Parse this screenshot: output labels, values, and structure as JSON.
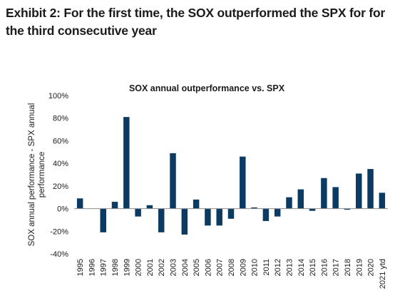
{
  "exhibit": {
    "title_line1": "Exhibit 2: For the first time, the SOX outperformed the SPX for for",
    "title_line2": "the third consecutive year"
  },
  "colors": {
    "bar": "#0b3a63",
    "axis": "#8c8c8c",
    "text": "#1b1b1b"
  },
  "chart_data": {
    "type": "bar",
    "title": "SOX annual outperformance vs. SPX",
    "xlabel": "",
    "ylabel_line1": "SOX annual performance - SPX annual",
    "ylabel_line2": "performance",
    "ylim": [
      -40,
      100
    ],
    "yticks": [
      100,
      80,
      60,
      40,
      20,
      0,
      -20,
      -40
    ],
    "ytick_labels": [
      "100%",
      "80%",
      "60%",
      "40%",
      "20%",
      "0%",
      "-20%",
      "-40%"
    ],
    "grid": false,
    "legend": "none",
    "categories": [
      "1995",
      "1996",
      "1997",
      "1998",
      "1999",
      "2000",
      "2001",
      "2002",
      "2003",
      "2004",
      "2005",
      "2006",
      "2007",
      "2008",
      "2009",
      "2010",
      "2011",
      "2012",
      "2013",
      "2014",
      "2015",
      "2016",
      "2017",
      "2018",
      "2019",
      "2020",
      "2021 ytd"
    ],
    "values": [
      9,
      0,
      -21,
      6,
      81,
      -7,
      3,
      -21,
      49,
      -23,
      8,
      -15,
      -15,
      -9,
      46,
      1,
      -11,
      -7,
      10,
      17,
      -2,
      27,
      19,
      -1,
      31,
      35,
      14
    ]
  }
}
